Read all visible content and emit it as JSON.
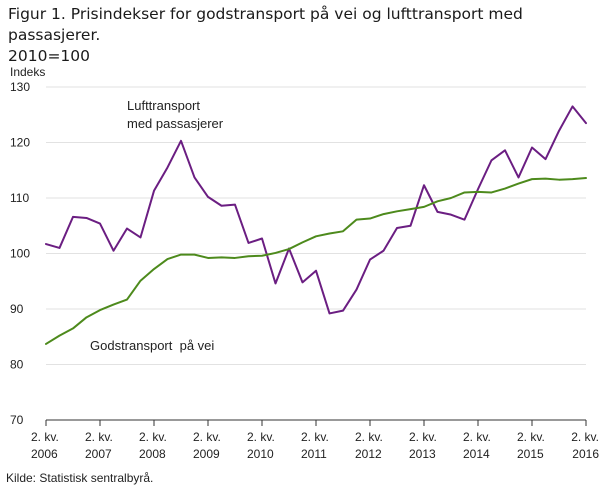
{
  "title_line1": "Figur 1. Prisindekser for godstransport på vei og lufttransport med passasjerer.",
  "title_line2": "2010=100",
  "source": "Kilde: Statistisk sentralbyrå.",
  "chart_data": {
    "type": "line",
    "title": "Figur 1. Prisindekser for godstransport på vei og lufttransport med passasjerer. 2010=100",
    "ylabel": "Indeks",
    "xlabel": "",
    "ylim": [
      70,
      130
    ],
    "yticks": [
      70,
      80,
      90,
      100,
      110,
      120,
      130
    ],
    "xlim": [
      0,
      40
    ],
    "grid": "horizontal",
    "legend": "inline-labels",
    "x_tick_labels": [
      {
        "x": 0,
        "top": "2. kv.",
        "bottom": "2006"
      },
      {
        "x": 4,
        "top": "2. kv.",
        "bottom": "2007"
      },
      {
        "x": 8,
        "top": "2. kv.",
        "bottom": "2008"
      },
      {
        "x": 12,
        "top": "2. kv.",
        "bottom": "2009"
      },
      {
        "x": 16,
        "top": "2. kv.",
        "bottom": "2010"
      },
      {
        "x": 20,
        "top": "2. kv.",
        "bottom": "2011"
      },
      {
        "x": 24,
        "top": "2. kv.",
        "bottom": "2012"
      },
      {
        "x": 28,
        "top": "2. kv.",
        "bottom": "2013"
      },
      {
        "x": 32,
        "top": "2. kv.",
        "bottom": "2014"
      },
      {
        "x": 36,
        "top": "2. kv.",
        "bottom": "2015"
      },
      {
        "x": 40,
        "top": "2. kv.",
        "bottom": "2016"
      }
    ],
    "series": [
      {
        "name": "Lufttransport med passasjerer",
        "label_lines": [
          "Lufttransport",
          "med passasjerer"
        ],
        "color": "#6b1e82",
        "values": [
          101.7,
          101.0,
          106.6,
          106.4,
          105.4,
          100.5,
          104.5,
          102.9,
          111.3,
          115.5,
          120.3,
          113.7,
          110.2,
          108.6,
          108.8,
          101.9,
          102.7,
          94.6,
          100.9,
          94.8,
          96.9,
          89.2,
          89.7,
          93.5,
          98.9,
          100.5,
          104.6,
          105.0,
          112.3,
          107.5,
          107.0,
          106.1,
          111.6,
          116.8,
          118.6,
          113.7,
          119.1,
          117.0,
          122.1,
          126.5,
          123.5
        ]
      },
      {
        "name": "Godstransport på vei",
        "label_lines": [
          "Godstransport  på vei"
        ],
        "color": "#4d8a1c",
        "values": [
          83.7,
          85.2,
          86.5,
          88.5,
          89.8,
          90.8,
          91.7,
          95.1,
          97.2,
          99.0,
          99.8,
          99.8,
          99.2,
          99.3,
          99.2,
          99.5,
          99.6,
          100.1,
          100.8,
          102.0,
          103.1,
          103.6,
          104.0,
          106.1,
          106.3,
          107.1,
          107.6,
          108.0,
          108.4,
          109.4,
          110.0,
          111.0,
          111.1,
          111.0,
          111.7,
          112.6,
          113.4,
          113.5,
          113.3,
          113.4,
          113.6
        ]
      }
    ]
  }
}
